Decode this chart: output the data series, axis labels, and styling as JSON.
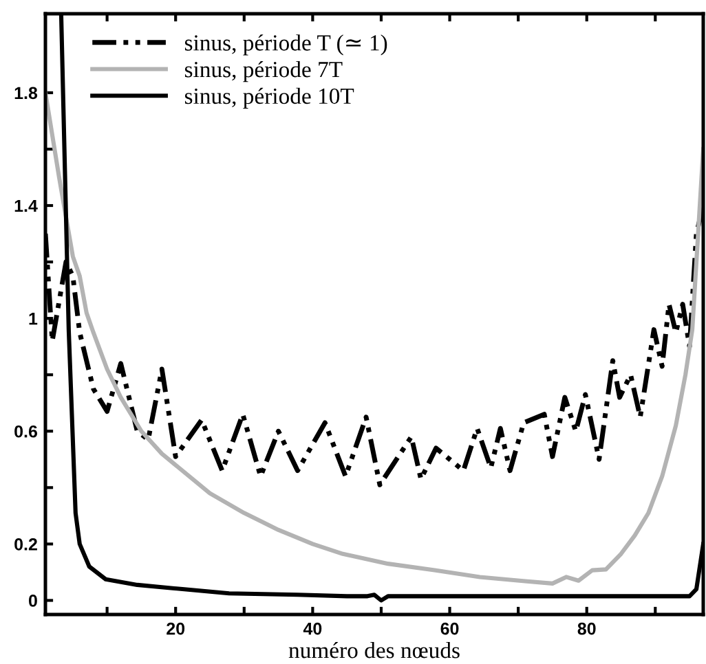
{
  "chart_data": {
    "type": "line",
    "xlabel": "numéro des nœuds",
    "xlim": [
      1,
      97
    ],
    "ylim": [
      -0.05,
      2.08
    ],
    "xticks": [
      {
        "value": 10,
        "label": null
      },
      20,
      {
        "value": 30,
        "label": null
      },
      40,
      {
        "value": 50,
        "label": null
      },
      60,
      {
        "value": 70,
        "label": null
      },
      80,
      {
        "value": 90,
        "label": null
      }
    ],
    "yticks": [
      0,
      0.2,
      {
        "value": 0.4,
        "label": null
      },
      0.6,
      {
        "value": 0.8,
        "label": null
      },
      1,
      {
        "value": 1.2,
        "label": null
      },
      1.4,
      {
        "value": 1.6,
        "label": null
      },
      1.8
    ],
    "grid": false,
    "legend": "top left",
    "series": [
      {
        "name": "sinus, période T (≃ 1)",
        "color": "#000000",
        "line_style": "dashdotdot",
        "x": [
          1,
          2,
          4,
          5,
          6,
          8,
          10,
          12,
          14.4,
          16,
          18,
          20,
          23.8,
          26.8,
          29.8,
          32.4,
          35,
          37.8,
          41.8,
          44.8,
          47.8,
          49.8,
          54.4,
          55.8,
          58,
          62,
          64,
          66,
          67.4,
          68.8,
          70.8,
          73.8,
          75,
          76.8,
          78.4,
          79.8,
          81.8,
          83.8,
          84.8,
          86.4,
          87.8,
          89.8,
          91,
          92,
          93,
          94,
          95,
          96,
          97
        ],
        "values": [
          1.3,
          0.92,
          1.2,
          1.15,
          0.95,
          0.75,
          0.67,
          0.84,
          0.6,
          0.57,
          0.82,
          0.51,
          0.64,
          0.46,
          0.66,
          0.44,
          0.6,
          0.46,
          0.63,
          0.44,
          0.65,
          0.41,
          0.58,
          0.43,
          0.54,
          0.46,
          0.61,
          0.47,
          0.61,
          0.46,
          0.63,
          0.66,
          0.51,
          0.72,
          0.6,
          0.73,
          0.5,
          0.85,
          0.72,
          0.8,
          0.65,
          0.96,
          0.83,
          1.05,
          0.95,
          1.05,
          0.9,
          1.3,
          1.4
        ]
      },
      {
        "name": "sinus, période 7T",
        "color": "#b3b3b3",
        "line_style": "solid",
        "x": [
          1,
          3,
          5,
          6,
          7,
          8,
          10,
          12,
          15,
          18,
          20,
          25,
          30,
          35,
          40,
          44.4,
          51,
          57.8,
          64.4,
          71,
          75,
          77,
          78.8,
          80.8,
          82.8,
          85,
          87,
          89,
          91,
          93,
          94.4,
          95.4,
          96.5,
          97
        ],
        "values": [
          1.8,
          1.5,
          1.22,
          1.15,
          1.02,
          0.95,
          0.82,
          0.72,
          0.6,
          0.52,
          0.48,
          0.38,
          0.31,
          0.25,
          0.2,
          0.165,
          0.13,
          0.107,
          0.083,
          0.068,
          0.06,
          0.083,
          0.07,
          0.107,
          0.11,
          0.165,
          0.23,
          0.31,
          0.44,
          0.62,
          0.8,
          0.96,
          1.4,
          1.6
        ]
      },
      {
        "name": "sinus, période 10T",
        "color": "#000000",
        "line_style": "solid",
        "x": [
          3.3,
          4.4,
          5.4,
          6,
          7.4,
          9.8,
          14.4,
          21,
          27.8,
          37.8,
          45,
          48,
          49,
          50,
          51,
          55,
          70,
          90,
          95,
          96,
          97
        ],
        "values": [
          2.08,
          0.96,
          0.31,
          0.2,
          0.12,
          0.075,
          0.055,
          0.04,
          0.025,
          0.02,
          0.015,
          0.015,
          0.02,
          0.0,
          0.015,
          0.015,
          0.015,
          0.015,
          0.015,
          0.04,
          0.2
        ]
      }
    ]
  }
}
